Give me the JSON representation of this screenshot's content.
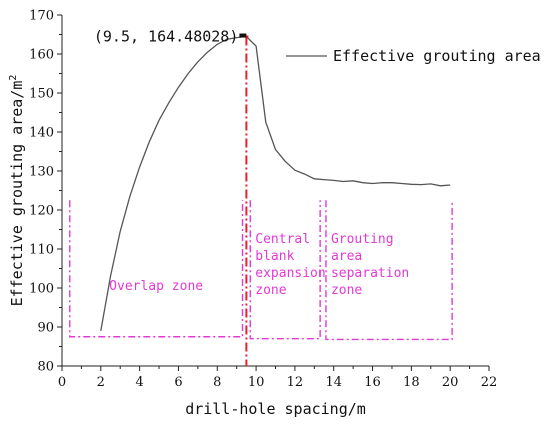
{
  "chart_data": {
    "type": "line",
    "xlabel": "drill-hole spacing/m",
    "ylabel": "Effective grouting area/m",
    "ylabel_sup": "2",
    "xlim": [
      0,
      22
    ],
    "ylim": [
      80,
      170
    ],
    "xticks": [
      0,
      2,
      4,
      6,
      8,
      10,
      12,
      14,
      16,
      18,
      20,
      22
    ],
    "yticks": [
      80,
      90,
      100,
      110,
      120,
      130,
      140,
      150,
      160,
      170
    ],
    "grid": false,
    "legend_position": "top-right",
    "series": [
      {
        "name": "Effective grouting area",
        "color": "#555555",
        "x": [
          2.0,
          2.5,
          3.0,
          3.5,
          4.0,
          4.5,
          5.0,
          5.5,
          6.0,
          6.5,
          7.0,
          7.5,
          8.0,
          8.5,
          9.0,
          9.5,
          10.0,
          10.5,
          11.0,
          11.5,
          12.0,
          12.5,
          13.0,
          13.5,
          14.0,
          14.5,
          15.0,
          15.5,
          16.0,
          16.5,
          17.0,
          17.5,
          18.0,
          18.5,
          19.0,
          19.5,
          20.0
        ],
        "y": [
          89.0,
          103.0,
          114.5,
          123.5,
          131.0,
          137.5,
          143.0,
          147.5,
          151.5,
          155.0,
          158.0,
          160.5,
          162.5,
          163.8,
          164.2,
          164.48,
          162.0,
          142.5,
          135.5,
          132.5,
          130.2,
          129.2,
          128.0,
          127.8,
          127.6,
          127.3,
          127.5,
          127.0,
          126.8,
          127.0,
          127.0,
          126.8,
          126.6,
          126.5,
          126.7,
          126.2,
          126.4
        ]
      }
    ],
    "peak_annotation": {
      "x": 9.5,
      "y": 164.48028,
      "label": "(9.5, 164.48028)",
      "color": "#e8212b"
    },
    "zone_color": "#e23ad6",
    "zones": [
      {
        "lines": [
          "Overlap zone"
        ],
        "x_start": 0.4,
        "x_end": 9.3,
        "y_base": 87.5,
        "y_top": 122.5
      },
      {
        "lines": [
          "Central",
          "blank",
          "expansion",
          "zone"
        ],
        "x_start": 9.7,
        "x_end": 13.3,
        "y_base": 87.0,
        "y_top": 122.5
      },
      {
        "lines": [
          "Grouting",
          "area",
          "separation",
          "zone"
        ],
        "x_start": 13.6,
        "x_end": 20.1,
        "y_base": 86.8,
        "y_top": 122.5
      }
    ]
  }
}
